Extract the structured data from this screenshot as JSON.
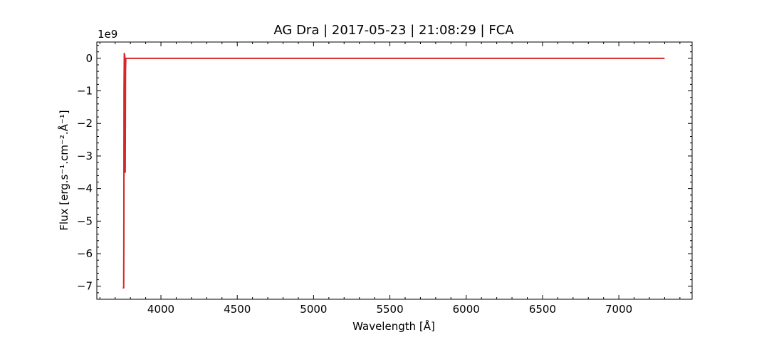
{
  "chart_data": {
    "type": "line",
    "title": "AG Dra | 2017-05-23 | 21:08:29 | FCA",
    "xlabel": "Wavelength [Å]",
    "ylabel": "Flux [erg.s⁻¹.cm⁻².Å⁻¹]",
    "y_offset_label": "1e9",
    "xlim": [
      3580,
      7480
    ],
    "ylim": [
      -7.4,
      0.5
    ],
    "y_scale_factor": 1000000000,
    "x_ticks": [
      4000,
      4500,
      5000,
      5500,
      6000,
      6500,
      7000
    ],
    "x_tick_labels": [
      "4000",
      "4500",
      "5000",
      "5500",
      "6000",
      "6500",
      "7000"
    ],
    "y_ticks": [
      0,
      -1,
      -2,
      -3,
      -4,
      -5,
      -6,
      -7
    ],
    "y_tick_labels": [
      "0",
      "−1",
      "−2",
      "−3",
      "−4",
      "−5",
      "−6",
      "−7"
    ],
    "grid": false,
    "series": [
      {
        "color": "#d62728",
        "x": [
          3750,
          3756,
          3757,
          3758,
          3760,
          3762,
          3764,
          3765,
          3766,
          3768,
          3770,
          3773,
          3780,
          3800,
          4000,
          5000,
          6000,
          7000,
          7300
        ],
        "y": [
          -7.05,
          -7.05,
          -5.5,
          -1.0,
          0.15,
          0.1,
          0.0,
          -1.2,
          -3.5,
          -0.4,
          0.0,
          0.0,
          0.0,
          0.0,
          0.0,
          0.0,
          0.0,
          0.0,
          0.0
        ]
      }
    ]
  }
}
